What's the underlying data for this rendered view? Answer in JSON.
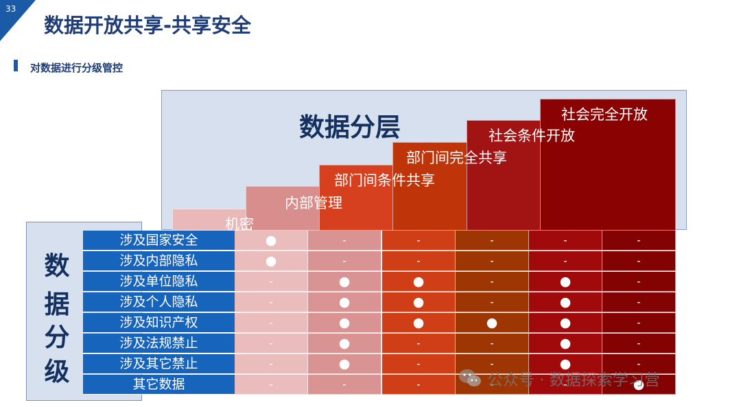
{
  "page_number": "33",
  "title": "数据开放共享-共享安全",
  "subtitle": "对数据进行分级管控",
  "layer_title": "数据分层",
  "layers": [
    {
      "label": "机密",
      "color": "#e9b9b9"
    },
    {
      "label": "内部管理",
      "color": "#d98e8e"
    },
    {
      "label": "部门间条件共享",
      "color": "#d7401e"
    },
    {
      "label": "部门间完全共享",
      "color": "#bf3509"
    },
    {
      "label": "社会条件开放",
      "color": "#a21313"
    },
    {
      "label": "社会完全开放",
      "color": "#8a0202"
    }
  ],
  "class_title": [
    "数",
    "据",
    "分",
    "级"
  ],
  "row_labels": [
    "涉及国家安全",
    "涉及内部隐私",
    "涉及单位隐私",
    "涉及个人隐私",
    "涉及知识产权",
    "涉及法规禁止",
    "涉及其它禁止",
    "其它数据"
  ],
  "column_colors": [
    "#ebbcbc",
    "#d99393",
    "#cf3e16",
    "#9e3603",
    "#a10a0a",
    "#830202"
  ],
  "grid": [
    [
      "●",
      "-",
      "-",
      "-",
      "-",
      "-"
    ],
    [
      "●",
      "-",
      "-",
      "-",
      "-",
      "-"
    ],
    [
      "-",
      "●",
      "●",
      "-",
      "●",
      "-"
    ],
    [
      "-",
      "●",
      "●",
      "-",
      "●",
      "-"
    ],
    [
      "-",
      "●",
      "●",
      "●",
      "●",
      "-"
    ],
    [
      "-",
      "●",
      "-",
      "-",
      "●",
      "-"
    ],
    [
      "-",
      "●",
      "-",
      "-",
      "●",
      "-"
    ],
    [
      "-",
      "-",
      "-",
      "-",
      "-",
      "●"
    ]
  ],
  "watermark": "公众号 · 数据探索学习营",
  "icons": {
    "wechat": "wechat-icon"
  }
}
